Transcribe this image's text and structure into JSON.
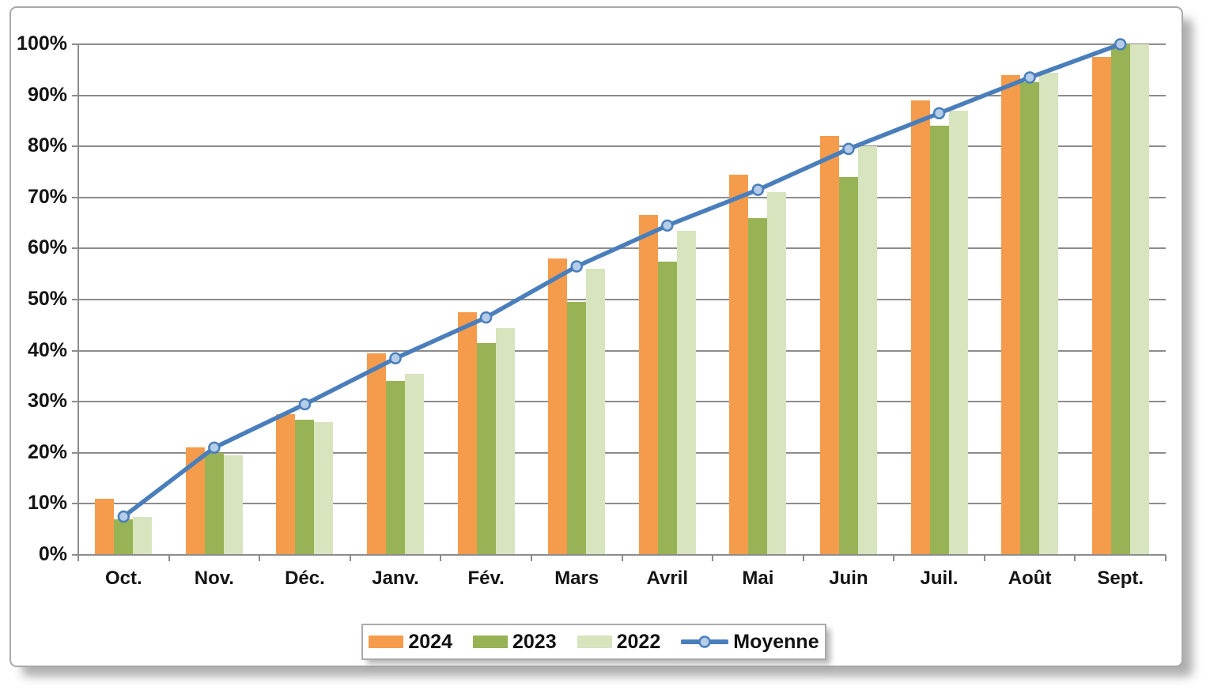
{
  "chart_data": {
    "type": "bar",
    "title": "",
    "xlabel": "",
    "ylabel": "",
    "ylim": [
      0,
      100
    ],
    "grid": true,
    "legend_position": "bottom",
    "yticks": [
      "0%",
      "10%",
      "20%",
      "30%",
      "40%",
      "50%",
      "60%",
      "70%",
      "80%",
      "90%",
      "100%"
    ],
    "categories": [
      "Oct.",
      "Nov.",
      "Déc.",
      "Janv.",
      "Fév.",
      "Mars",
      "Avril",
      "Mai",
      "Juin",
      "Juil.",
      "Août",
      "Sept."
    ],
    "series": [
      {
        "name": "2024",
        "type": "bar",
        "color": "#f59c4c",
        "values": [
          11,
          21,
          27.5,
          39.5,
          47.5,
          58,
          66.5,
          74.5,
          82,
          89,
          94,
          97.5
        ]
      },
      {
        "name": "2023",
        "type": "bar",
        "color": "#98b355",
        "values": [
          7,
          20,
          26.5,
          34,
          41.5,
          49.5,
          57.5,
          66,
          74,
          84,
          92.5,
          100
        ]
      },
      {
        "name": "2022",
        "type": "bar",
        "color": "#d8e4be",
        "values": [
          7.5,
          19.5,
          26,
          35.5,
          44.5,
          56,
          63.5,
          71,
          80,
          87,
          94.5,
          100
        ]
      },
      {
        "name": "Moyenne",
        "type": "line",
        "color": "#4a7ebb",
        "marker_fill": "#b5cde9",
        "values": [
          7.5,
          21,
          29.5,
          38.5,
          46.5,
          56.5,
          64.5,
          71.5,
          79.5,
          86.5,
          93.5,
          100
        ]
      }
    ]
  },
  "colors": {
    "gridline": "#8c8c8c",
    "axis": "#8c8c8c",
    "text": "#141414",
    "frame_border": "#a9a9a9",
    "background": "#ffffff"
  }
}
